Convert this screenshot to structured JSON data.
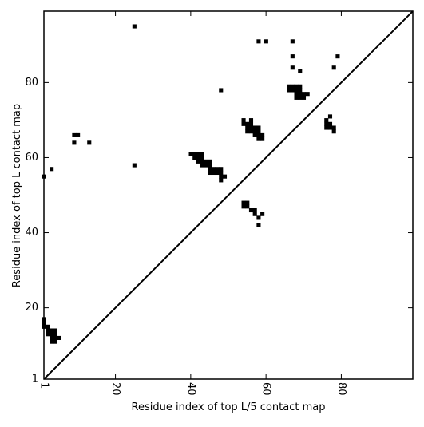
{
  "chart_data": {
    "type": "heatmap",
    "subtype": "contact-map",
    "xlabel": "Residue index of top L/5 contact map",
    "ylabel": "Residue index of top L contact map",
    "xlim": [
      1,
      99
    ],
    "ylim": [
      1,
      99
    ],
    "x_ticks": [
      1,
      20,
      40,
      60,
      80
    ],
    "y_ticks": [
      1,
      20,
      40,
      60,
      80
    ],
    "x_tick_labels": [
      "1",
      "20",
      "40",
      "60",
      "80"
    ],
    "y_tick_labels": [
      "1",
      "20",
      "40",
      "60",
      "80"
    ],
    "x_tick_rotation": -90,
    "grid": false,
    "diagonal_line": true,
    "cell_color": "#000000",
    "background_color": "#ffffff",
    "contacts": [
      [
        1,
        15
      ],
      [
        1,
        16
      ],
      [
        1,
        17
      ],
      [
        2,
        13
      ],
      [
        2,
        14
      ],
      [
        2,
        15
      ],
      [
        3,
        11
      ],
      [
        3,
        12
      ],
      [
        3,
        13
      ],
      [
        3,
        14
      ],
      [
        4,
        11
      ],
      [
        4,
        12
      ],
      [
        4,
        13
      ],
      [
        4,
        14
      ],
      [
        5,
        12
      ],
      [
        1,
        55
      ],
      [
        3,
        57
      ],
      [
        9,
        64
      ],
      [
        9,
        66
      ],
      [
        10,
        66
      ],
      [
        13,
        64
      ],
      [
        25,
        58
      ],
      [
        25,
        95
      ],
      [
        40,
        61
      ],
      [
        41,
        60
      ],
      [
        41,
        61
      ],
      [
        42,
        59
      ],
      [
        42,
        60
      ],
      [
        42,
        61
      ],
      [
        43,
        58
      ],
      [
        43,
        59
      ],
      [
        43,
        60
      ],
      [
        43,
        61
      ],
      [
        44,
        58
      ],
      [
        44,
        59
      ],
      [
        45,
        56
      ],
      [
        45,
        57
      ],
      [
        45,
        58
      ],
      [
        45,
        59
      ],
      [
        46,
        56
      ],
      [
        46,
        57
      ],
      [
        47,
        56
      ],
      [
        47,
        57
      ],
      [
        48,
        54
      ],
      [
        48,
        55
      ],
      [
        48,
        56
      ],
      [
        48,
        57
      ],
      [
        49,
        55
      ],
      [
        48,
        78
      ],
      [
        54,
        47
      ],
      [
        54,
        48
      ],
      [
        55,
        47
      ],
      [
        55,
        48
      ],
      [
        56,
        46
      ],
      [
        57,
        45
      ],
      [
        57,
        46
      ],
      [
        58,
        42
      ],
      [
        58,
        44
      ],
      [
        59,
        45
      ],
      [
        54,
        69
      ],
      [
        54,
        70
      ],
      [
        55,
        67
      ],
      [
        55,
        68
      ],
      [
        55,
        69
      ],
      [
        56,
        67
      ],
      [
        56,
        68
      ],
      [
        56,
        69
      ],
      [
        56,
        70
      ],
      [
        57,
        66
      ],
      [
        57,
        67
      ],
      [
        57,
        68
      ],
      [
        58,
        65
      ],
      [
        58,
        66
      ],
      [
        58,
        67
      ],
      [
        58,
        68
      ],
      [
        59,
        65
      ],
      [
        59,
        66
      ],
      [
        58,
        91
      ],
      [
        60,
        91
      ],
      [
        66,
        78
      ],
      [
        66,
        79
      ],
      [
        67,
        78
      ],
      [
        67,
        79
      ],
      [
        67,
        84
      ],
      [
        67,
        87
      ],
      [
        67,
        91
      ],
      [
        68,
        76
      ],
      [
        68,
        77
      ],
      [
        68,
        78
      ],
      [
        68,
        79
      ],
      [
        69,
        76
      ],
      [
        69,
        77
      ],
      [
        69,
        78
      ],
      [
        69,
        79
      ],
      [
        69,
        83
      ],
      [
        70,
        76
      ],
      [
        70,
        77
      ],
      [
        71,
        77
      ],
      [
        76,
        68
      ],
      [
        76,
        69
      ],
      [
        76,
        70
      ],
      [
        77,
        68
      ],
      [
        77,
        69
      ],
      [
        77,
        71
      ],
      [
        78,
        67
      ],
      [
        78,
        68
      ],
      [
        78,
        84
      ],
      [
        79,
        87
      ]
    ]
  }
}
